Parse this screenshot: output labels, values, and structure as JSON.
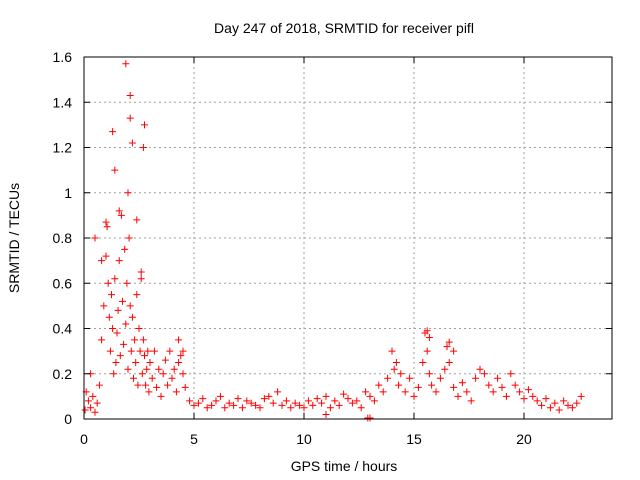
{
  "chart_data": {
    "type": "scatter",
    "title": "Day 247 of 2018, SRMTID for receiver pifl",
    "xlabel": "GPS time / hours",
    "ylabel": "SRMTID / TECUs",
    "xlim": [
      0,
      24
    ],
    "ylim": [
      0,
      1.6
    ],
    "xticks": [
      0,
      5,
      10,
      15,
      20
    ],
    "xtick_labels": [
      "0",
      "5",
      "10",
      "15",
      "20"
    ],
    "yticks": [
      0,
      0.2,
      0.4,
      0.6,
      0.8,
      1,
      1.2,
      1.4,
      1.6
    ],
    "ytick_labels": [
      "0",
      "0.2",
      "0.4",
      "0.6",
      "0.8",
      "1",
      "1.2",
      "1.4",
      "1.6"
    ],
    "grid": true,
    "marker": "+",
    "color": "#ff0000",
    "series": [
      {
        "name": "SRMTID",
        "x": [
          0.05,
          0.1,
          0.2,
          0.3,
          0.4,
          0.5,
          0.6,
          0.7,
          0.8,
          0.9,
          1.0,
          1.05,
          1.1,
          1.15,
          1.2,
          1.25,
          1.3,
          1.35,
          1.4,
          1.45,
          1.5,
          1.55,
          1.6,
          1.65,
          1.7,
          1.75,
          1.8,
          1.85,
          1.9,
          1.95,
          2.0,
          2.05,
          2.1,
          2.15,
          2.2,
          2.25,
          2.3,
          2.35,
          2.4,
          2.45,
          2.5,
          2.55,
          2.6,
          2.65,
          2.7,
          2.75,
          2.8,
          2.85,
          2.9,
          2.95,
          3.0,
          3.1,
          3.2,
          3.3,
          3.4,
          3.5,
          3.6,
          3.7,
          3.8,
          3.9,
          4.0,
          4.1,
          4.2,
          4.3,
          4.4,
          4.5,
          4.6,
          4.8,
          5.0,
          5.2,
          5.4,
          5.6,
          5.8,
          6.0,
          6.2,
          6.4,
          6.6,
          6.8,
          7.0,
          7.2,
          7.4,
          7.6,
          7.8,
          8.0,
          8.2,
          8.4,
          8.6,
          8.8,
          9.0,
          9.2,
          9.4,
          9.6,
          9.8,
          10.0,
          10.2,
          10.4,
          10.6,
          10.8,
          11.0,
          11.2,
          11.4,
          11.6,
          11.8,
          12.0,
          12.2,
          12.4,
          12.6,
          12.8,
          13.0,
          13.2,
          13.4,
          13.6,
          13.8,
          14.0,
          14.1,
          14.2,
          14.3,
          14.4,
          14.6,
          14.8,
          15.0,
          15.2,
          15.4,
          15.5,
          15.6,
          15.7,
          15.8,
          16.0,
          16.2,
          16.4,
          16.5,
          16.6,
          16.8,
          17.0,
          17.2,
          17.4,
          17.6,
          17.8,
          18.0,
          18.2,
          18.4,
          18.6,
          18.8,
          19.0,
          19.2,
          19.4,
          19.6,
          19.8,
          20.0,
          20.2,
          20.4,
          20.6,
          20.8,
          21.0,
          21.2,
          21.4,
          21.6,
          21.8,
          22.0,
          22.2,
          22.4,
          22.6,
          1.3,
          1.9,
          2.1,
          2.1,
          2.2,
          2.7,
          2.75,
          1.4,
          2.0,
          1.0,
          1.6,
          2.4,
          2.6,
          0.3,
          0.5,
          0.8,
          4.3,
          4.5,
          12.9,
          13.0,
          11.0,
          15.6,
          15.7,
          16.6,
          16.8
        ],
        "y": [
          0.04,
          0.12,
          0.08,
          0.05,
          0.1,
          0.03,
          0.07,
          0.15,
          0.35,
          0.5,
          0.72,
          0.85,
          0.6,
          0.45,
          0.3,
          0.55,
          0.4,
          0.2,
          0.62,
          0.25,
          0.38,
          0.48,
          0.7,
          0.28,
          0.9,
          0.52,
          0.33,
          0.75,
          0.42,
          0.6,
          0.22,
          0.8,
          0.5,
          0.3,
          0.45,
          0.18,
          0.35,
          0.25,
          0.55,
          0.15,
          0.4,
          0.3,
          0.62,
          0.2,
          0.35,
          0.28,
          0.15,
          0.22,
          0.3,
          0.12,
          0.25,
          0.18,
          0.3,
          0.14,
          0.22,
          0.1,
          0.2,
          0.26,
          0.15,
          0.3,
          0.18,
          0.22,
          0.12,
          0.25,
          0.28,
          0.2,
          0.14,
          0.08,
          0.06,
          0.07,
          0.09,
          0.05,
          0.06,
          0.08,
          0.1,
          0.05,
          0.07,
          0.06,
          0.09,
          0.05,
          0.08,
          0.07,
          0.06,
          0.05,
          0.09,
          0.1,
          0.07,
          0.12,
          0.06,
          0.08,
          0.05,
          0.07,
          0.06,
          0.05,
          0.08,
          0.06,
          0.09,
          0.07,
          0.1,
          0.05,
          0.08,
          0.06,
          0.11,
          0.09,
          0.07,
          0.08,
          0.05,
          0.12,
          0.1,
          0.08,
          0.15,
          0.12,
          0.18,
          0.3,
          0.22,
          0.25,
          0.15,
          0.2,
          0.12,
          0.18,
          0.1,
          0.14,
          0.25,
          0.38,
          0.3,
          0.2,
          0.15,
          0.12,
          0.18,
          0.22,
          0.32,
          0.25,
          0.14,
          0.1,
          0.16,
          0.12,
          0.08,
          0.18,
          0.22,
          0.2,
          0.15,
          0.12,
          0.18,
          0.14,
          0.1,
          0.2,
          0.15,
          0.12,
          0.09,
          0.13,
          0.1,
          0.08,
          0.06,
          0.09,
          0.05,
          0.07,
          0.04,
          0.08,
          0.06,
          0.05,
          0.07,
          0.1,
          1.27,
          1.57,
          1.43,
          1.33,
          1.22,
          1.2,
          1.3,
          1.1,
          1.0,
          0.87,
          0.92,
          0.88,
          0.65,
          0.2,
          0.8,
          0.7,
          0.35,
          0.3,
          0.0,
          0.0,
          0.02,
          0.39,
          0.36,
          0.34,
          0.3
        ]
      }
    ]
  }
}
